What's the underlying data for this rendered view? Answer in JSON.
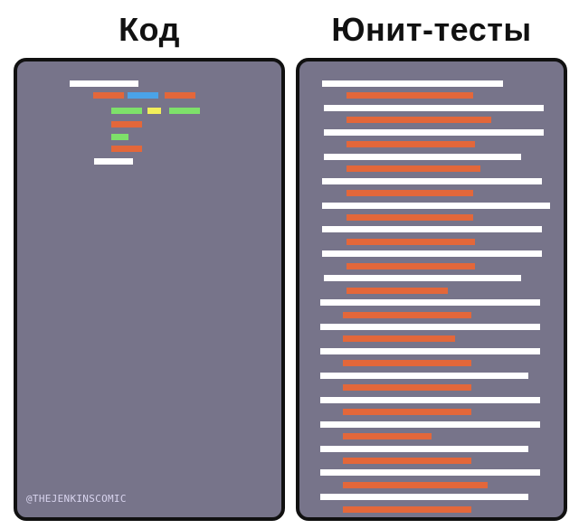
{
  "headings": {
    "left": "Код",
    "right": "Юнит-тесты"
  },
  "credit": "@THEJENKINSCOMIC",
  "colors": {
    "panel_bg": "#77748a",
    "panel_border": "#111111",
    "white_line": "#ffffff",
    "orange_line": "#e3673a",
    "blue_line": "#4aa3e8",
    "green_line": "#7ee06a",
    "yellow_line": "#f2ee5a"
  }
}
